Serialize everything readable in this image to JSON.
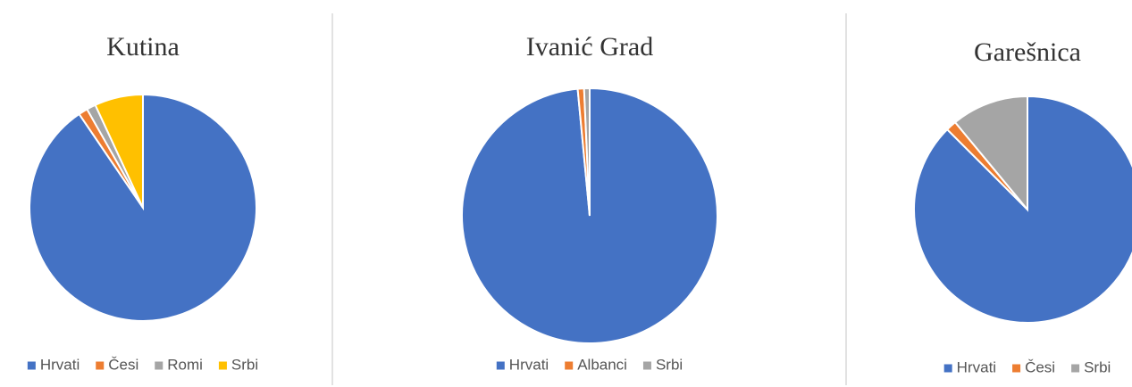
{
  "chart_data": [
    {
      "type": "pie",
      "title": "Kutina",
      "categories": [
        "Hrvati",
        "Česi",
        "Romi",
        "Srbi"
      ],
      "values": [
        90.5,
        1.3,
        1.3,
        6.9
      ],
      "colors": [
        "#4472c4",
        "#ed7d31",
        "#a5a5a5",
        "#ffc000"
      ]
    },
    {
      "type": "pie",
      "title": "Ivanić Grad",
      "categories": [
        "Hrvati",
        "Albanci",
        "Srbi"
      ],
      "values": [
        98.5,
        0.8,
        0.7
      ],
      "colors": [
        "#4472c4",
        "#ed7d31",
        "#a5a5a5"
      ]
    },
    {
      "type": "pie",
      "title": "Garešnica",
      "categories": [
        "Hrvati",
        "Česi",
        "Srbi"
      ],
      "values": [
        87.5,
        1.5,
        11
      ],
      "colors": [
        "#4472c4",
        "#ed7d31",
        "#a5a5a5"
      ]
    }
  ]
}
